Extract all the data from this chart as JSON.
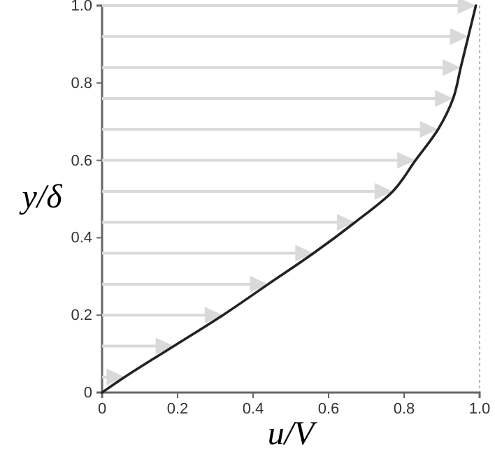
{
  "chart_data": {
    "type": "line",
    "xlabel": "u/V",
    "ylabel": "y/δ",
    "x": [
      0,
      0.06,
      0.19,
      0.32,
      0.44,
      0.56,
      0.67,
      0.77,
      0.83,
      0.89,
      0.93,
      0.95,
      0.97,
      0.99
    ],
    "series": [
      {
        "color": "#222222",
        "values": [
          0,
          0.04,
          0.12,
          0.2,
          0.28,
          0.36,
          0.44,
          0.52,
          0.6,
          0.68,
          0.76,
          0.84,
          0.92,
          1.0
        ]
      }
    ],
    "xlim": [
      0,
      1
    ],
    "ylim": [
      0,
      1
    ],
    "xticks": [
      0,
      0.2,
      0.4,
      0.6,
      0.8,
      {
        "value": 1,
        "label": "1.0"
      }
    ],
    "yticks": [
      0,
      0.2,
      0.4,
      0.6,
      0.8,
      {
        "value": 1,
        "label": "1.0"
      }
    ],
    "ref_lines": [
      {
        "axis": "x",
        "value": 1,
        "color": "#bbbbbb",
        "line_style": "dotted"
      }
    ],
    "marker": "none",
    "line_style": "solid"
  }
}
